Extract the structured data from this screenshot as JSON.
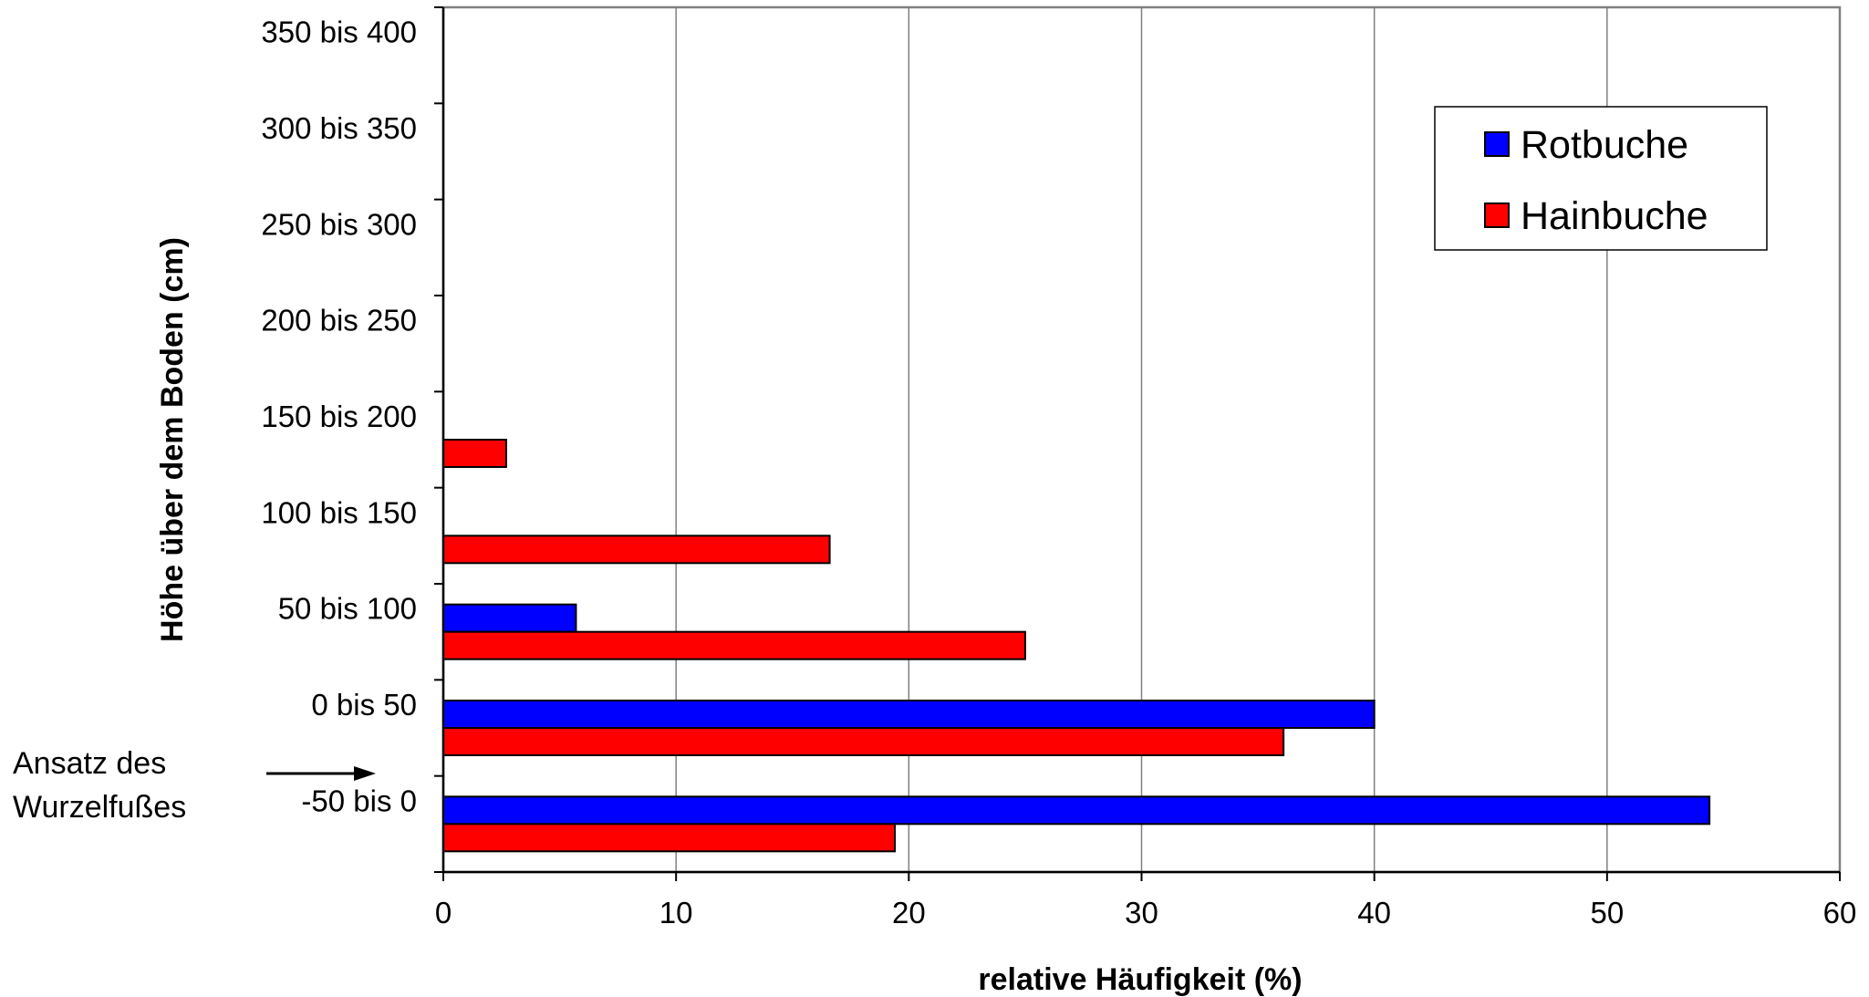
{
  "chart_data": {
    "type": "bar",
    "orientation": "horizontal",
    "categories": [
      "-50 bis 0",
      "0 bis 50",
      "50 bis 100",
      "100 bis 150",
      "150 bis 200",
      "200 bis 250",
      "250 bis 300",
      "300 bis 350",
      "350 bis 400"
    ],
    "series": [
      {
        "name": "Rotbuche",
        "color": "#0000ff",
        "values": [
          54.4,
          40.0,
          5.7,
          0,
          0,
          0,
          0,
          0,
          0
        ]
      },
      {
        "name": "Hainbuche",
        "color": "#ff0000",
        "values": [
          19.4,
          36.1,
          25.0,
          16.6,
          2.7,
          0,
          0,
          0,
          0
        ]
      }
    ],
    "xlabel": "relative Häufigkeit (%)",
    "ylabel": "Höhe über dem Boden (cm)",
    "xlim": [
      0,
      60
    ],
    "xticks": [
      "0",
      "10",
      "20",
      "30",
      "40",
      "50",
      "60"
    ],
    "grid": "vertical",
    "legend_position": "top-right",
    "annotation": {
      "line1": "Ansatz des",
      "line2": "Wurzelfußes"
    }
  }
}
